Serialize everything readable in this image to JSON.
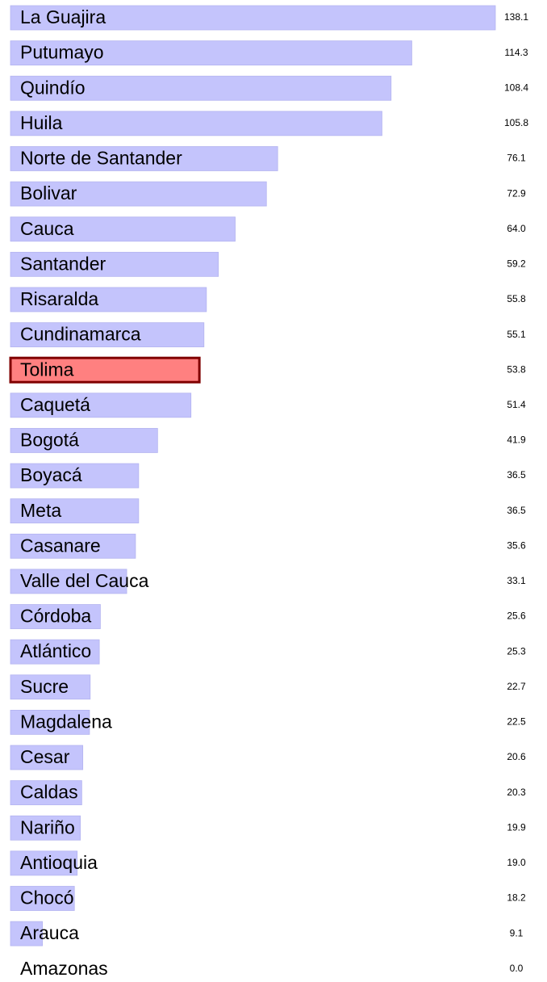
{
  "chart_data": {
    "type": "bar",
    "orientation": "horizontal",
    "categories": [
      "La Guajira",
      "Putumayo",
      "Quindío",
      "Huila",
      "Norte de Santander",
      "Bolivar",
      "Cauca",
      "Santander",
      "Risaralda",
      "Cundinamarca",
      "Tolima",
      "Caquetá",
      "Bogotá",
      "Boyacá",
      "Meta",
      "Casanare",
      "Valle del Cauca",
      "Córdoba",
      "Atlántico",
      "Sucre",
      "Magdalena",
      "Cesar",
      "Caldas",
      "Nariño",
      "Antioquia",
      "Chocó",
      "Arauca",
      "Amazonas"
    ],
    "values": [
      138.1,
      114.3,
      108.4,
      105.8,
      76.1,
      72.9,
      64.0,
      59.2,
      55.8,
      55.1,
      53.8,
      51.4,
      41.9,
      36.5,
      36.5,
      35.6,
      33.1,
      25.6,
      25.3,
      22.7,
      22.5,
      20.6,
      20.3,
      19.9,
      19.0,
      18.2,
      9.1,
      0.0
    ],
    "value_labels": [
      "138.1",
      "114.3",
      "108.4",
      "105.8",
      "76.1",
      "72.9",
      "64.0",
      "59.2",
      "55.8",
      "55.1",
      "53.8",
      "51.4",
      "41.9",
      "36.5",
      "36.5",
      "35.6",
      "33.1",
      "25.6",
      "25.3",
      "22.7",
      "22.5",
      "20.6",
      "20.3",
      "19.9",
      "19.0",
      "18.2",
      "9.1",
      "0.0"
    ],
    "color": "#c4c4fc",
    "highlight_index": 10,
    "highlight_color": "#ff8080",
    "highlight_edge": "#800000"
  }
}
